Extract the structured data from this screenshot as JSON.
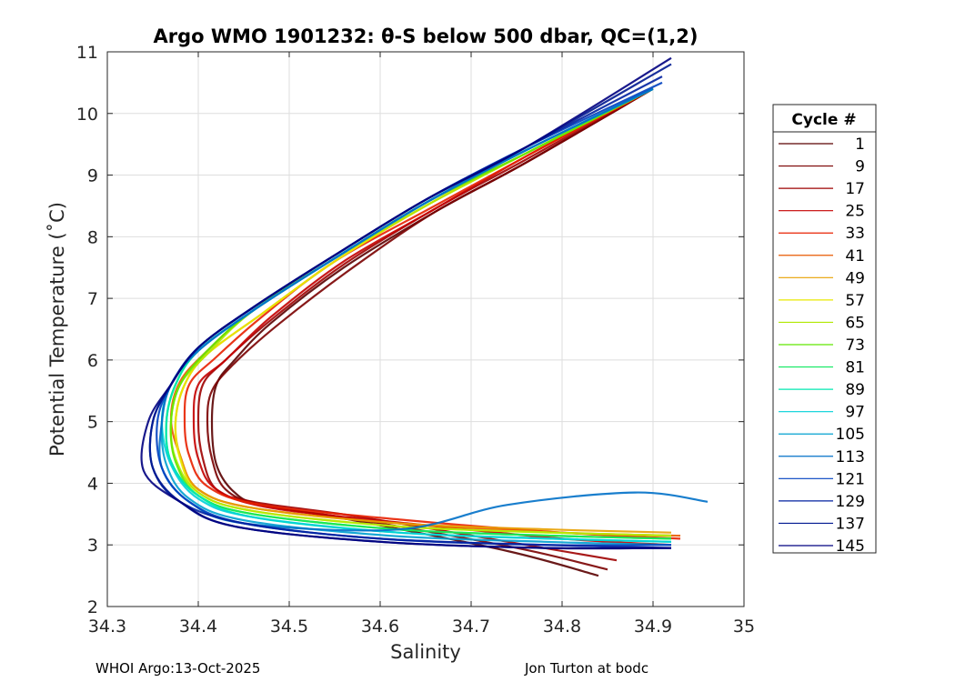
{
  "chart_data": {
    "type": "line",
    "title": "Argo WMO 1901232: θ-S below 500 dbar,  QC=(1,2)",
    "xlabel": "Salinity",
    "ylabel": "Potential Temperature (˚C)",
    "xlim": [
      34.3,
      35.0
    ],
    "ylim": [
      2,
      11
    ],
    "xticks": [
      "34.3",
      "34.4",
      "34.5",
      "34.6",
      "34.7",
      "34.8",
      "34.9",
      "35"
    ],
    "yticks": [
      "2",
      "3",
      "4",
      "5",
      "6",
      "7",
      "8",
      "9",
      "10",
      "11"
    ],
    "grid": true,
    "legend": {
      "title": "Cycle #",
      "placement": "outside-right",
      "entries": [
        "1",
        "9",
        "17",
        "25",
        "33",
        "41",
        "49",
        "57",
        "65",
        "73",
        "81",
        "89",
        "97",
        "105",
        "113",
        "121",
        "129",
        "137",
        "145"
      ]
    },
    "colors": [
      "#5a0000",
      "#7a0000",
      "#9e0000",
      "#c40000",
      "#e82000",
      "#e85a00",
      "#e8a000",
      "#e8e800",
      "#b0e800",
      "#60e800",
      "#10e860",
      "#00e8b0",
      "#00d0d8",
      "#00a0d0",
      "#0070c8",
      "#0040c0",
      "#0020a0",
      "#001890",
      "#000080"
    ],
    "series": [
      {
        "name": "1",
        "x": [
          34.84,
          34.74,
          34.57,
          34.47,
          34.44,
          34.42,
          34.415,
          34.42,
          34.44,
          34.48,
          34.56,
          34.66,
          34.76,
          34.9
        ],
        "y": [
          2.5,
          2.9,
          3.4,
          3.65,
          3.85,
          4.3,
          5.0,
          5.6,
          6.0,
          6.6,
          7.5,
          8.4,
          9.2,
          10.4
        ]
      },
      {
        "name": "9",
        "x": [
          34.85,
          34.75,
          34.58,
          34.47,
          34.43,
          34.415,
          34.41,
          34.415,
          34.44,
          34.49,
          34.57,
          34.66,
          34.76,
          34.9
        ],
        "y": [
          2.6,
          2.95,
          3.4,
          3.65,
          3.9,
          4.4,
          5.0,
          5.5,
          5.95,
          6.6,
          7.5,
          8.4,
          9.2,
          10.4
        ]
      },
      {
        "name": "17",
        "x": [
          34.86,
          34.76,
          34.58,
          34.46,
          34.42,
          34.405,
          34.4,
          34.405,
          34.43,
          34.48,
          34.56,
          34.66,
          34.76,
          34.9
        ],
        "y": [
          2.75,
          3.0,
          3.45,
          3.7,
          3.9,
          4.4,
          5.0,
          5.6,
          6.0,
          6.65,
          7.55,
          8.45,
          9.25,
          10.4
        ]
      },
      {
        "name": "25",
        "x": [
          34.92,
          34.8,
          34.63,
          34.48,
          34.42,
          34.4,
          34.395,
          34.4,
          34.43,
          34.48,
          34.56,
          34.66,
          34.76,
          34.9
        ],
        "y": [
          3.0,
          3.1,
          3.35,
          3.6,
          3.9,
          4.4,
          5.0,
          5.6,
          6.0,
          6.7,
          7.6,
          8.45,
          9.3,
          10.4
        ]
      },
      {
        "name": "33",
        "x": [
          34.93,
          34.8,
          34.63,
          34.47,
          34.41,
          34.39,
          34.385,
          34.39,
          34.42,
          34.47,
          34.55,
          34.66,
          34.76,
          34.9
        ],
        "y": [
          3.1,
          3.2,
          3.4,
          3.65,
          3.95,
          4.45,
          5.0,
          5.6,
          6.05,
          6.7,
          7.6,
          8.5,
          9.3,
          10.4
        ]
      },
      {
        "name": "41",
        "x": [
          34.93,
          34.8,
          34.62,
          34.46,
          34.4,
          34.38,
          34.37,
          34.38,
          34.41,
          34.46,
          34.55,
          34.65,
          34.76,
          34.9
        ],
        "y": [
          3.15,
          3.2,
          3.35,
          3.6,
          3.9,
          4.45,
          5.05,
          5.65,
          6.15,
          6.8,
          7.65,
          8.55,
          9.35,
          10.4
        ]
      },
      {
        "name": "49",
        "x": [
          34.92,
          34.79,
          34.62,
          34.46,
          34.4,
          34.38,
          34.375,
          34.385,
          34.41,
          34.47,
          34.55,
          34.65,
          34.76,
          34.9
        ],
        "y": [
          3.2,
          3.25,
          3.35,
          3.6,
          3.9,
          4.45,
          5.0,
          5.6,
          6.1,
          6.75,
          7.6,
          8.5,
          9.35,
          10.4
        ]
      },
      {
        "name": "57",
        "x": [
          34.92,
          34.79,
          34.62,
          34.46,
          34.4,
          34.38,
          34.375,
          34.385,
          34.41,
          34.47,
          34.55,
          34.65,
          34.76,
          34.9
        ],
        "y": [
          3.15,
          3.2,
          3.3,
          3.55,
          3.85,
          4.4,
          5.0,
          5.6,
          6.1,
          6.75,
          7.6,
          8.5,
          9.35,
          10.4
        ]
      },
      {
        "name": "65",
        "x": [
          34.92,
          34.79,
          34.62,
          34.46,
          34.4,
          34.375,
          34.37,
          34.38,
          34.41,
          34.46,
          34.55,
          34.65,
          34.76,
          34.9
        ],
        "y": [
          3.15,
          3.2,
          3.3,
          3.55,
          3.85,
          4.4,
          5.0,
          5.6,
          6.1,
          6.8,
          7.65,
          8.5,
          9.35,
          10.4
        ]
      },
      {
        "name": "73",
        "x": [
          34.92,
          34.79,
          34.62,
          34.46,
          34.4,
          34.375,
          34.37,
          34.38,
          34.41,
          34.46,
          34.55,
          34.65,
          34.76,
          34.9
        ],
        "y": [
          3.1,
          3.15,
          3.25,
          3.5,
          3.8,
          4.35,
          5.0,
          5.6,
          6.15,
          6.8,
          7.65,
          8.55,
          9.35,
          10.4
        ]
      },
      {
        "name": "81",
        "x": [
          34.92,
          34.79,
          34.62,
          34.46,
          34.4,
          34.37,
          34.365,
          34.375,
          34.4,
          34.46,
          34.55,
          34.65,
          34.76,
          34.9
        ],
        "y": [
          3.1,
          3.15,
          3.25,
          3.5,
          3.8,
          4.35,
          5.0,
          5.6,
          6.15,
          6.8,
          7.65,
          8.55,
          9.4,
          10.4
        ]
      },
      {
        "name": "89",
        "x": [
          34.92,
          34.79,
          34.62,
          34.46,
          34.4,
          34.37,
          34.365,
          34.375,
          34.4,
          34.46,
          34.55,
          34.65,
          34.76,
          34.9
        ],
        "y": [
          3.05,
          3.1,
          3.2,
          3.45,
          3.8,
          4.35,
          5.0,
          5.6,
          6.15,
          6.8,
          7.65,
          8.55,
          9.4,
          10.4
        ]
      },
      {
        "name": "97",
        "x": [
          34.92,
          34.79,
          34.62,
          34.46,
          34.4,
          34.37,
          34.36,
          34.37,
          34.4,
          34.46,
          34.55,
          34.65,
          34.76,
          34.9
        ],
        "y": [
          3.05,
          3.1,
          3.2,
          3.45,
          3.75,
          4.3,
          5.0,
          5.6,
          6.15,
          6.8,
          7.65,
          8.55,
          9.4,
          10.4
        ]
      },
      {
        "name": "105",
        "x": [
          34.92,
          34.78,
          34.61,
          34.45,
          34.39,
          34.365,
          34.36,
          34.37,
          34.4,
          34.46,
          34.55,
          34.65,
          34.76,
          34.9
        ],
        "y": [
          3.0,
          3.05,
          3.15,
          3.4,
          3.75,
          4.3,
          5.0,
          5.6,
          6.15,
          6.8,
          7.65,
          8.55,
          9.4,
          10.4
        ]
      },
      {
        "name": "113",
        "x": [
          34.96,
          34.88,
          34.74,
          34.62,
          34.45,
          34.39,
          34.36,
          34.36,
          34.37,
          34.4,
          34.46,
          34.55,
          34.65,
          34.76,
          34.9
        ],
        "y": [
          3.7,
          3.85,
          3.65,
          3.25,
          3.35,
          3.7,
          4.25,
          5.0,
          5.6,
          6.15,
          6.8,
          7.65,
          8.55,
          9.4,
          10.4
        ]
      },
      {
        "name": "121",
        "x": [
          34.92,
          34.78,
          34.6,
          34.45,
          34.39,
          34.36,
          34.355,
          34.37,
          34.4,
          34.46,
          34.55,
          34.65,
          34.76,
          34.91
        ],
        "y": [
          3.0,
          3.0,
          3.1,
          3.35,
          3.7,
          4.25,
          5.0,
          5.6,
          6.2,
          6.85,
          7.7,
          8.6,
          9.45,
          10.5
        ]
      },
      {
        "name": "129",
        "x": [
          34.92,
          34.78,
          34.6,
          34.45,
          34.38,
          34.35,
          34.35,
          34.37,
          34.4,
          34.46,
          34.55,
          34.65,
          34.76,
          34.91
        ],
        "y": [
          2.95,
          3.0,
          3.1,
          3.35,
          3.7,
          4.25,
          5.0,
          5.6,
          6.2,
          6.85,
          7.7,
          8.6,
          9.45,
          10.6
        ]
      },
      {
        "name": "137",
        "x": [
          34.92,
          34.78,
          34.6,
          34.44,
          34.38,
          34.35,
          34.35,
          34.37,
          34.4,
          34.46,
          34.55,
          34.65,
          34.76,
          34.92
        ],
        "y": [
          2.95,
          2.95,
          3.05,
          3.3,
          3.7,
          4.25,
          5.0,
          5.6,
          6.2,
          6.85,
          7.7,
          8.6,
          9.45,
          10.8
        ]
      },
      {
        "name": "145",
        "x": [
          34.92,
          34.78,
          34.6,
          34.44,
          34.38,
          34.34,
          34.345,
          34.37,
          34.4,
          34.46,
          34.55,
          34.65,
          34.76,
          34.92
        ],
        "y": [
          2.95,
          2.95,
          3.05,
          3.3,
          3.7,
          4.2,
          5.0,
          5.6,
          6.2,
          6.85,
          7.7,
          8.6,
          9.45,
          10.9
        ]
      }
    ]
  },
  "footer": {
    "left": "WHOI Argo:13-Oct-2025",
    "right": "Jon Turton at bodc"
  }
}
